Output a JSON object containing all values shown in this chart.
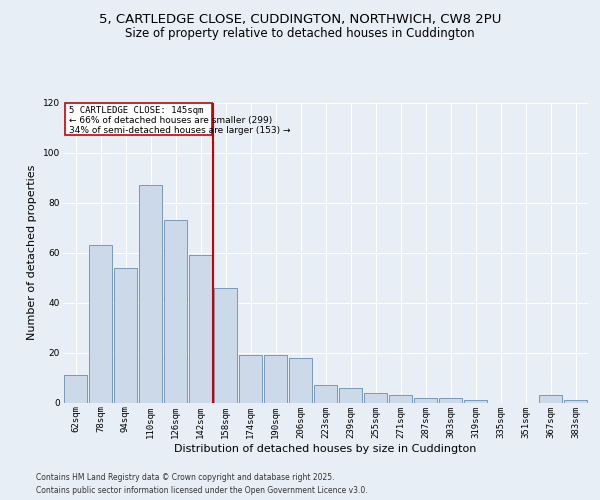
{
  "title_line1": "5, CARTLEDGE CLOSE, CUDDINGTON, NORTHWICH, CW8 2PU",
  "title_line2": "Size of property relative to detached houses in Cuddington",
  "xlabel": "Distribution of detached houses by size in Cuddington",
  "ylabel": "Number of detached properties",
  "categories": [
    "62sqm",
    "78sqm",
    "94sqm",
    "110sqm",
    "126sqm",
    "142sqm",
    "158sqm",
    "174sqm",
    "190sqm",
    "206sqm",
    "223sqm",
    "239sqm",
    "255sqm",
    "271sqm",
    "287sqm",
    "303sqm",
    "319sqm",
    "335sqm",
    "351sqm",
    "367sqm",
    "383sqm"
  ],
  "values": [
    11,
    63,
    54,
    87,
    73,
    59,
    46,
    19,
    19,
    18,
    7,
    6,
    4,
    3,
    2,
    2,
    1,
    0,
    0,
    3,
    1
  ],
  "bar_color": "#ccd9e8",
  "bar_edge_color": "#7799bb",
  "vline_color": "#cc0000",
  "annotation_title": "5 CARTLEDGE CLOSE: 145sqm",
  "annotation_line1": "← 66% of detached houses are smaller (299)",
  "annotation_line2": "34% of semi-detached houses are larger (153) →",
  "annotation_box_color": "#ffffff",
  "annotation_box_edge": "#cc0000",
  "footnote1": "Contains HM Land Registry data © Crown copyright and database right 2025.",
  "footnote2": "Contains public sector information licensed under the Open Government Licence v3.0.",
  "background_color": "#e8eef5",
  "plot_bg_color": "#e8eef5",
  "ylim": [
    0,
    120
  ],
  "yticks": [
    0,
    20,
    40,
    60,
    80,
    100,
    120
  ],
  "grid_color": "#ffffff",
  "title_fontsize": 9.5,
  "subtitle_fontsize": 8.5,
  "axis_label_fontsize": 8,
  "tick_fontsize": 6.5
}
